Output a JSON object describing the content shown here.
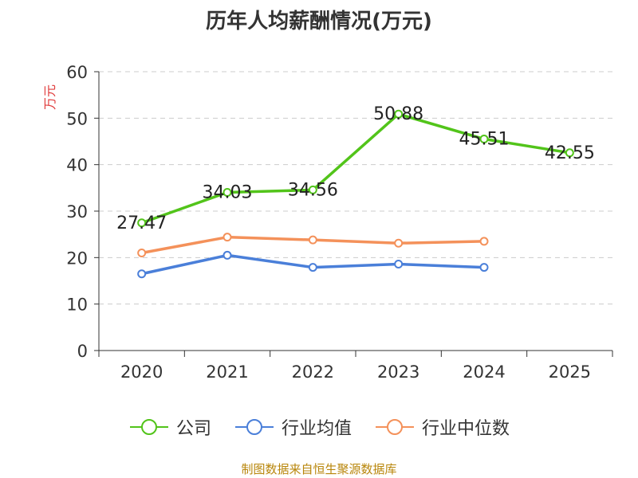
{
  "chart_data": {
    "type": "line",
    "title": "历年人均薪酬情况(万元)",
    "ylabel": "万元",
    "xlabel": "",
    "categories": [
      "2020",
      "2021",
      "2022",
      "2023",
      "2024",
      "2025"
    ],
    "ylim": [
      0,
      60
    ],
    "yticks": [
      "0",
      "10",
      "20",
      "30",
      "40",
      "50",
      "60"
    ],
    "grid": true,
    "legend_position": "bottom",
    "series": [
      {
        "name": "公司",
        "color": "#52c41a",
        "values": [
          27.47,
          34.03,
          34.56,
          50.88,
          45.51,
          42.55
        ],
        "labels": [
          "27.47",
          "34.03",
          "34.56",
          "50.88",
          "45.51",
          "42.55"
        ]
      },
      {
        "name": "行业均值",
        "color": "#4a7fd9",
        "values": [
          16.5,
          20.5,
          17.9,
          18.6,
          17.9,
          null
        ]
      },
      {
        "name": "行业中位数",
        "color": "#f4915a",
        "values": [
          21.0,
          24.4,
          23.8,
          23.1,
          23.5,
          null
        ]
      }
    ]
  },
  "source": "制图数据来自恒生聚源数据库"
}
